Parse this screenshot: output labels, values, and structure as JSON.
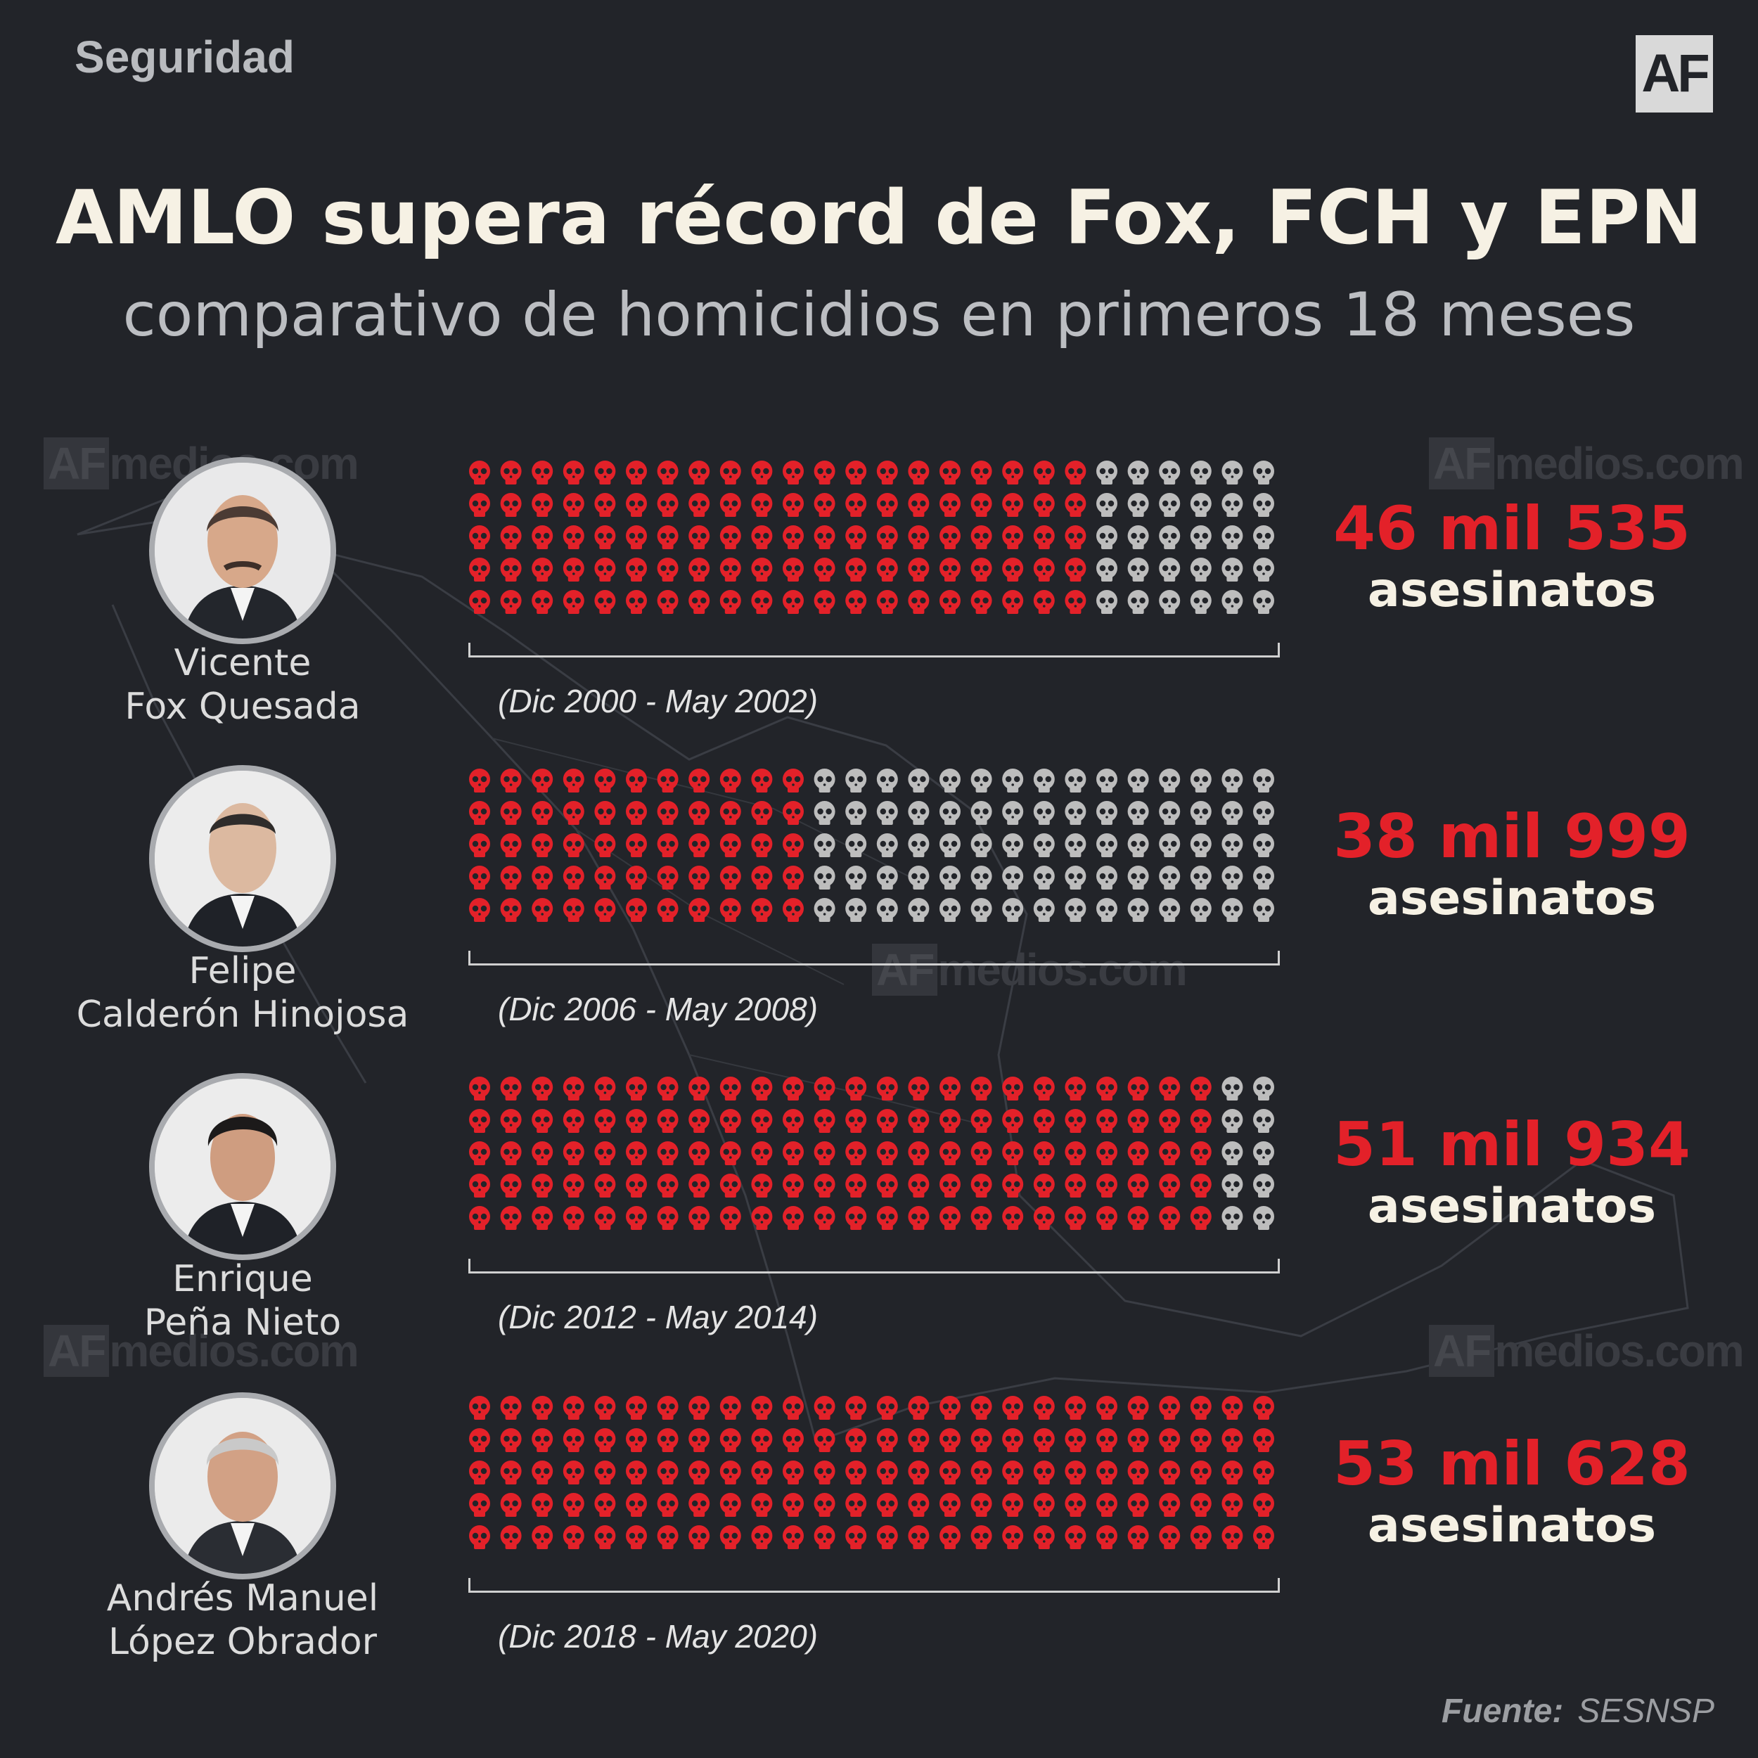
{
  "header": {
    "section": "Seguridad",
    "logo": "AF",
    "title": "AMLO supera récord de Fox, FCH y EPN",
    "subtitle": "comparativo de homicidios en primeros 18 meses"
  },
  "watermark": {
    "box": "AF",
    "text": "medios.com"
  },
  "colors": {
    "background": "#222429",
    "filled_skull": "#e32129",
    "empty_skull": "#bdbdbd",
    "title": "#f6f1e4"
  },
  "icon": "skull-icon",
  "chart_data": {
    "type": "pictogram",
    "grid": {
      "rows": 5,
      "cols": 26
    },
    "series": [
      {
        "name": "Vicente\nFox Quesada",
        "name_lines": [
          "Vicente",
          "Fox Quesada"
        ],
        "period": "(Dic 2000 - May 2002)",
        "value": 46535,
        "label": "46 mil 535",
        "unit": "asesinatos",
        "filled_cols": 20
      },
      {
        "name": "Felipe\nCalderón Hinojosa",
        "name_lines": [
          "Felipe",
          "Calderón Hinojosa"
        ],
        "period": "(Dic 2006 - May 2008)",
        "value": 38999,
        "label": "38 mil 999",
        "unit": "asesinatos",
        "filled_cols": 11
      },
      {
        "name": "Enrique\nPeña Nieto",
        "name_lines": [
          "Enrique",
          "Peña Nieto"
        ],
        "period": "(Dic 2012 - May 2014)",
        "value": 51934,
        "label": "51 mil 934",
        "unit": "asesinatos",
        "filled_cols": 24
      },
      {
        "name": "Andrés Manuel\nLópez Obrador",
        "name_lines": [
          "Andrés Manuel",
          "López Obrador"
        ],
        "period": "(Dic 2018 - May 2020)",
        "value": 53628,
        "label": "53 mil 628",
        "unit": "asesinatos",
        "filled_cols": 26
      }
    ]
  },
  "footer": {
    "source_label": "Fuente:",
    "source_value": "SESNSP"
  }
}
